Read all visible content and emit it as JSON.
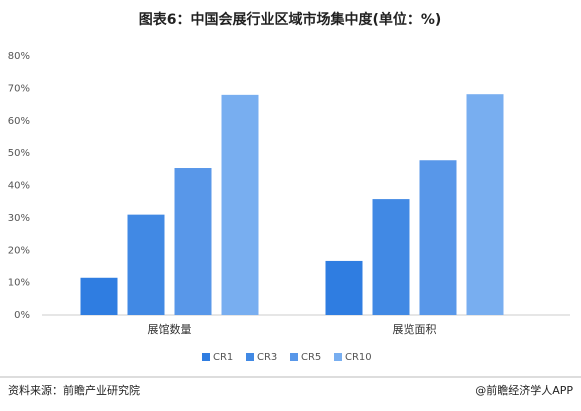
{
  "chart_data": {
    "type": "bar",
    "title": "图表6：中国会展行业区域市场集中度(单位：%)",
    "categories": [
      "展馆数量",
      "展览面积"
    ],
    "series": [
      {
        "name": "CR1",
        "color": "#2f7de1",
        "values": [
          11.5,
          16.7
        ]
      },
      {
        "name": "CR3",
        "color": "#4189e4",
        "values": [
          31,
          35.8
        ]
      },
      {
        "name": "CR5",
        "color": "#5897e9",
        "values": [
          45.4,
          47.8
        ]
      },
      {
        "name": "CR10",
        "color": "#78aef0",
        "values": [
          68,
          68.2
        ]
      }
    ],
    "ylim": [
      0,
      80
    ],
    "yticks": [
      {
        "value": 0,
        "label": "0%"
      },
      {
        "value": 10,
        "label": "10%"
      },
      {
        "value": 20,
        "label": "20%"
      },
      {
        "value": 30,
        "label": "30%"
      },
      {
        "value": 40,
        "label": "40%"
      },
      {
        "value": 50,
        "label": "50%"
      },
      {
        "value": 60,
        "label": "60%"
      },
      {
        "value": 70,
        "label": "70%"
      },
      {
        "value": 80,
        "label": "80%"
      }
    ],
    "legend": "bottom",
    "source": "资料来源：前瞻产业研究院",
    "credit": "@前瞻经济学人APP"
  }
}
